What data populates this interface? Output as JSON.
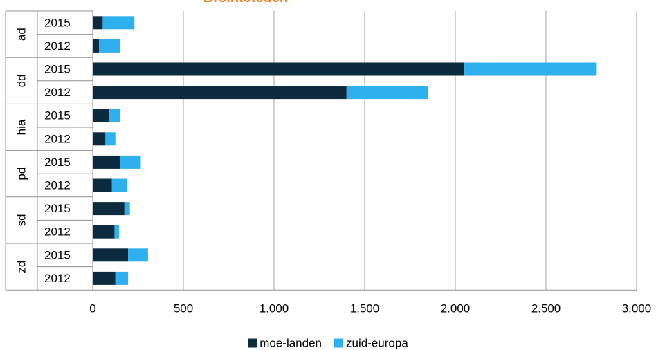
{
  "chart_data": {
    "type": "bar",
    "orientation": "horizontal",
    "stacked": true,
    "title": "Breintsteden",
    "groups": [
      "ad",
      "dd",
      "hia",
      "pd",
      "sd",
      "zd"
    ],
    "subcategories": [
      "2015",
      "2012"
    ],
    "categories": [
      "ad 2015",
      "ad 2012",
      "dd 2015",
      "dd 2012",
      "hia 2015",
      "hia 2012",
      "pd 2015",
      "pd 2012",
      "sd 2015",
      "sd 2012",
      "zd 2015",
      "zd 2012"
    ],
    "series": [
      {
        "name": "moe-landen",
        "color": "#0d2b3e",
        "values": [
          55,
          35,
          2050,
          1400,
          90,
          70,
          150,
          105,
          175,
          120,
          195,
          125
        ]
      },
      {
        "name": "zuid-europa",
        "color": "#2fb0ee",
        "values": [
          175,
          115,
          730,
          450,
          60,
          55,
          115,
          85,
          30,
          25,
          110,
          70
        ]
      }
    ],
    "xlim": [
      0,
      3000
    ],
    "xticks": [
      0,
      500,
      1000,
      1500,
      2000,
      2500,
      3000
    ],
    "xtick_labels": [
      "0",
      "500",
      "1.000",
      "1.500",
      "2.000",
      "2.500",
      "3.000"
    ],
    "grid": "vertical",
    "legend_position": "bottom",
    "title_color": "#f07f1e",
    "gridline_color": "#a0a0a0"
  }
}
